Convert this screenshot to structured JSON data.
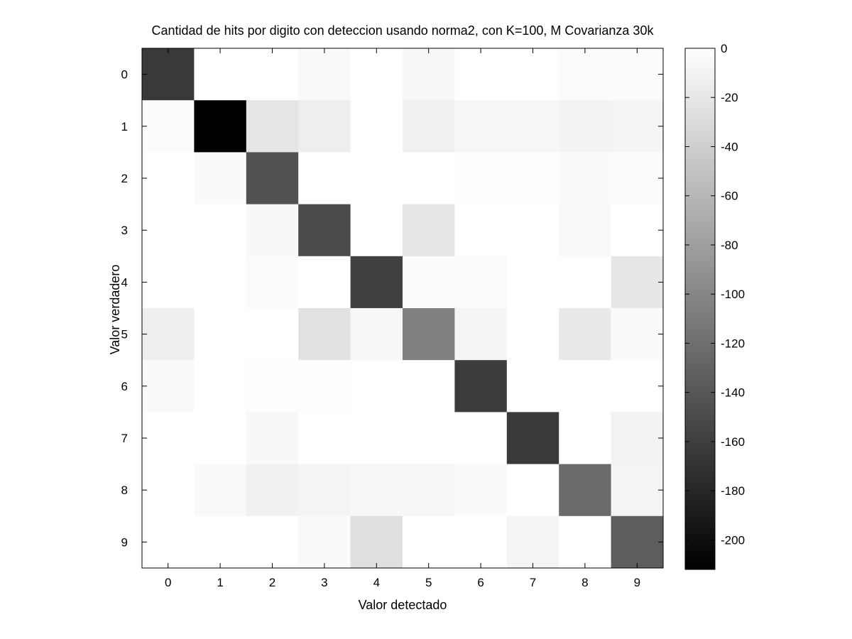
{
  "chart_data": {
    "type": "heatmap",
    "title": "Cantidad de hits por digito con deteccion usando norma2, con K=100, M Covarianza 30k",
    "xlabel": "Valor detectado",
    "ylabel": "Valor verdadero",
    "x_categories": [
      "0",
      "1",
      "2",
      "3",
      "4",
      "5",
      "6",
      "7",
      "8",
      "9"
    ],
    "y_categories": [
      "0",
      "1",
      "2",
      "3",
      "4",
      "5",
      "6",
      "7",
      "8",
      "9"
    ],
    "values": [
      [
        -165,
        0,
        0,
        -5,
        0,
        -7,
        0,
        0,
        -3,
        -3
      ],
      [
        -3,
        -212,
        -22,
        -14,
        0,
        -12,
        -7,
        -7,
        -10,
        -8
      ],
      [
        0,
        -4,
        -145,
        0,
        0,
        0,
        -2,
        -2,
        -4,
        -3
      ],
      [
        0,
        0,
        -6,
        -150,
        0,
        -22,
        0,
        0,
        -5,
        0
      ],
      [
        0,
        0,
        -3,
        0,
        -158,
        -3,
        -3,
        0,
        0,
        -20
      ],
      [
        -14,
        0,
        0,
        -24,
        -6,
        -105,
        -8,
        0,
        -18,
        -4
      ],
      [
        -4,
        0,
        -2,
        -2,
        0,
        0,
        -162,
        0,
        0,
        0
      ],
      [
        0,
        0,
        -6,
        0,
        0,
        0,
        0,
        -165,
        0,
        -11
      ],
      [
        0,
        -5,
        -12,
        -9,
        -7,
        -7,
        -4,
        0,
        -123,
        -9
      ],
      [
        0,
        0,
        0,
        -4,
        -27,
        0,
        0,
        -9,
        0,
        -135
      ]
    ],
    "colorbar": {
      "range": [
        -212,
        0
      ],
      "ticks": [
        0,
        -20,
        -40,
        -60,
        -80,
        -100,
        -120,
        -140,
        -160,
        -180,
        -200
      ],
      "tick_labels": [
        "0",
        "-20",
        "-40",
        "-60",
        "-80",
        "-100",
        "-120",
        "-140",
        "-160",
        "-180",
        "-200"
      ],
      "colormap": "gray",
      "min_color": "#000000",
      "max_color": "#ffffff"
    },
    "grid": false
  }
}
